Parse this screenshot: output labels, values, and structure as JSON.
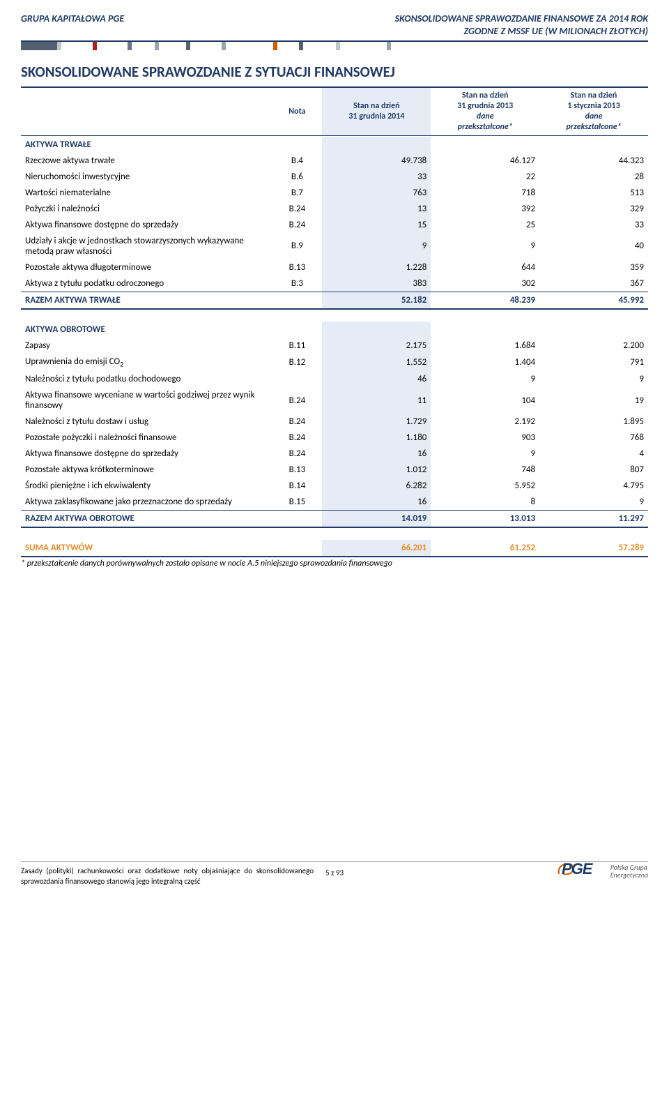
{
  "header": {
    "left": "GRUPA KAPITAŁOWA PGE",
    "right_line1": "SKONSOLIDOWANE SPRAWOZDANIE FINANSOWE ZA 2014 ROK",
    "right_line2": "ZGODNE Z MSSF UE (W MILIONACH ZŁOTYCH)"
  },
  "decor_colors": [
    "#556070",
    "#c0c4cc",
    "#ffffff",
    "#aa2222",
    "#ffffff",
    "#6b7688",
    "#ffffff",
    "#9aa4b2",
    "#ffffff",
    "#556070",
    "#ffffff",
    "#9aa4b2",
    "#ffffff",
    "#d85c00",
    "#ffffff",
    "#556070",
    "#ffffff",
    "#c0c4cc",
    "#ffffff",
    "#9aa4b2"
  ],
  "title": "SKONSOLIDOWANE SPRAWOZDANIE Z SYTUACJI FINANSOWEJ",
  "columns": {
    "nota": "Nota",
    "c1_line1": "Stan na dzień",
    "c1_line2": "31 grudnia 2014",
    "c2_line1": "Stan na dzień",
    "c2_line2": "31 grudnia 2013",
    "c2_line3": "dane",
    "c2_line4": "przekształcone*",
    "c3_line1": "Stan na dzień",
    "c3_line2": "1 stycznia 2013",
    "c3_line3": "dane",
    "c3_line4": "przekształcone*"
  },
  "section1_title": "AKTYWA TRWAŁE",
  "section1_rows": [
    {
      "label": "Rzeczowe aktywa trwałe",
      "nota": "B.4",
      "v1": "49.738",
      "v2": "46.127",
      "v3": "44.323"
    },
    {
      "label": "Nieruchomości inwestycyjne",
      "nota": "B.6",
      "v1": "33",
      "v2": "22",
      "v3": "28"
    },
    {
      "label": "Wartości niematerialne",
      "nota": "B.7",
      "v1": "763",
      "v2": "718",
      "v3": "513"
    },
    {
      "label": "Pożyczki i należności",
      "nota": "B.24",
      "v1": "13",
      "v2": "392",
      "v3": "329"
    },
    {
      "label": "Aktywa finansowe dostępne do sprzedaży",
      "nota": "B.24",
      "v1": "15",
      "v2": "25",
      "v3": "33"
    },
    {
      "label": "Udziały i akcje w jednostkach stowarzyszonych wykazywane metodą praw własności",
      "nota": "B.9",
      "v1": "9",
      "v2": "9",
      "v3": "40"
    },
    {
      "label": "Pozostałe aktywa długoterminowe",
      "nota": "B.13",
      "v1": "1.228",
      "v2": "644",
      "v3": "359"
    },
    {
      "label": "Aktywa z tytułu podatku odroczonego",
      "nota": "B.3",
      "v1": "383",
      "v2": "302",
      "v3": "367"
    }
  ],
  "section1_sum": {
    "label": "RAZEM AKTYWA TRWAŁE",
    "v1": "52.182",
    "v2": "48.239",
    "v3": "45.992"
  },
  "section2_title": "AKTYWA OBROTOWE",
  "section2_rows": [
    {
      "label": "Zapasy",
      "nota": "B.11",
      "v1": "2.175",
      "v2": "1.684",
      "v3": "2.200"
    },
    {
      "label": "Uprawnienia do emisji CO",
      "sub": "2",
      "nota": "B.12",
      "v1": "1.552",
      "v2": "1.404",
      "v3": "791"
    },
    {
      "label": "Należności z tytułu podatku dochodowego",
      "nota": "",
      "v1": "46",
      "v2": "9",
      "v3": "9"
    },
    {
      "label": "Aktywa finansowe wyceniane w wartości godziwej przez wynik finansowy",
      "nota": "B.24",
      "v1": "11",
      "v2": "104",
      "v3": "19"
    },
    {
      "label": "Należności z tytułu dostaw i usług",
      "nota": "B.24",
      "v1": "1.729",
      "v2": "2.192",
      "v3": "1.895"
    },
    {
      "label": "Pozostałe pożyczki i należności finansowe",
      "nota": "B.24",
      "v1": "1.180",
      "v2": "903",
      "v3": "768"
    },
    {
      "label": "Aktywa finansowe dostępne do sprzedaży",
      "nota": "B.24",
      "v1": "16",
      "v2": "9",
      "v3": "4"
    },
    {
      "label": "Pozostałe aktywa krótkoterminowe",
      "nota": "B.13",
      "v1": "1.012",
      "v2": "748",
      "v3": "807"
    },
    {
      "label": "Środki pieniężne i ich ekwiwalenty",
      "nota": "B.14",
      "v1": "6.282",
      "v2": "5.952",
      "v3": "4.795"
    },
    {
      "label": "Aktywa zaklasyfikowane jako przeznaczone do sprzedaży",
      "nota": "B.15",
      "v1": "16",
      "v2": "8",
      "v3": "9"
    }
  ],
  "section2_sum": {
    "label": "RAZEM AKTYWA OBROTOWE",
    "v1": "14.019",
    "v2": "13.013",
    "v3": "11.297"
  },
  "grand_total": {
    "label": "SUMA AKTYWÓW",
    "v1": "66.201",
    "v2": "61.252",
    "v3": "57.289"
  },
  "footnote": "* przekształcenie danych porównywalnych zostało opisane w nocie A.5 niniejszego sprawozdania finansowego",
  "footer": {
    "left": "Zasady (polityki) rachunkowości oraz dodatkowe noty objaśniające do skonsolidowanego sprawozdania finansowego stanowią jego integralną część",
    "center": "5 z 93",
    "logo": "PGE",
    "logo_sub1": "Polska Grupa",
    "logo_sub2": "Energetyczna"
  }
}
